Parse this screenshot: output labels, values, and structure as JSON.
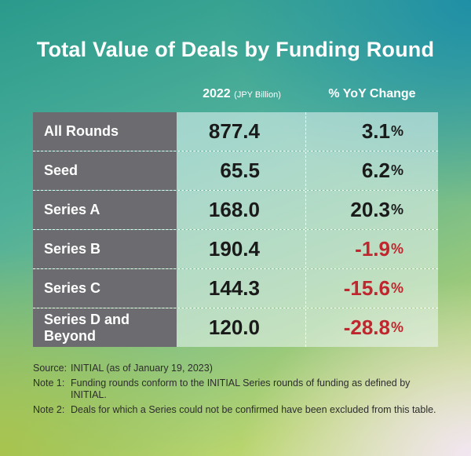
{
  "chart_data": {
    "type": "table",
    "title": "Total Value of Deals by Funding Round",
    "columns": [
      {
        "label": "2022",
        "unit": "(JPY Billion)"
      },
      {
        "label": "% YoY Change",
        "unit": ""
      }
    ],
    "rows": [
      {
        "category": "All Rounds",
        "value": "877.4",
        "change": "3.1",
        "negative": false
      },
      {
        "category": "Seed",
        "value": "65.5",
        "change": "6.2",
        "negative": false
      },
      {
        "category": "Series A",
        "value": "168.0",
        "change": "20.3",
        "negative": false
      },
      {
        "category": "Series B",
        "value": "190.4",
        "change": "-1.9",
        "negative": true
      },
      {
        "category": "Series C",
        "value": "144.3",
        "change": "-15.6",
        "negative": true
      },
      {
        "category": "Series D and Beyond",
        "value": "120.0",
        "change": "-28.8",
        "negative": true
      }
    ],
    "percent_sign": "%",
    "colors": {
      "negative": "#c0262d",
      "category_bg": "#6b6b70"
    }
  },
  "notes": [
    {
      "label": "Source:",
      "text": "INITIAL (as of January 19, 2023)"
    },
    {
      "label": "Note 1:",
      "text": "Funding rounds conform to the INITIAL Series rounds of funding as defined by INITIAL."
    },
    {
      "label": "Note 2:",
      "text": "Deals for which a Series could not be confirmed have been excluded from this table."
    }
  ]
}
